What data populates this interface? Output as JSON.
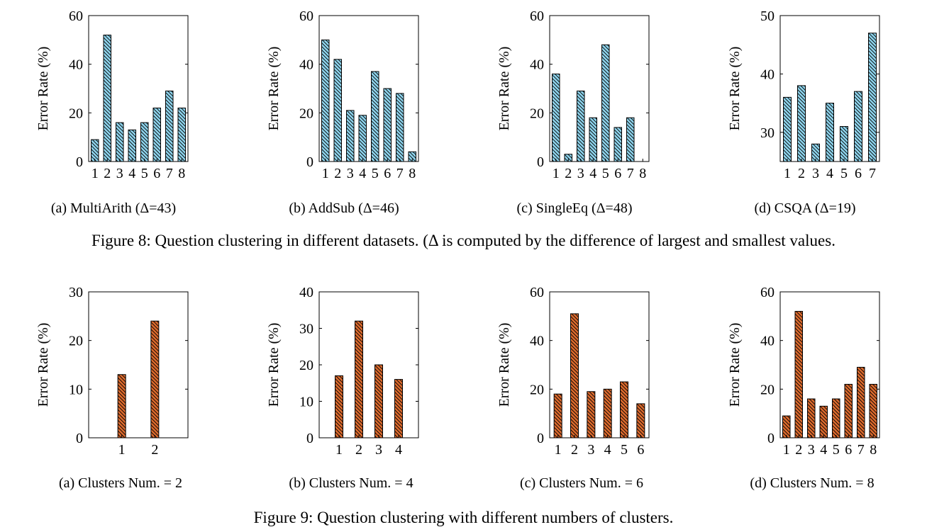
{
  "figure8": {
    "caption": "Figure 8: Question clustering in different datasets. (Δ is computed by the difference of largest and smallest values.",
    "bar_color": "#8dd3ec",
    "charts": [
      {
        "caption": "(a) MultiArith (Δ=43)"
      },
      {
        "caption": "(b) AddSub (Δ=46)"
      },
      {
        "caption": "(c) SingleEq (Δ=48)"
      },
      {
        "caption": "(d) CSQA (Δ=19)"
      }
    ]
  },
  "figure9": {
    "caption": "Figure 9: Question clustering with different numbers of clusters.",
    "bar_color": "#dc6a2d",
    "charts": [
      {
        "caption": "(a) Clusters Num. = 2"
      },
      {
        "caption": "(b) Clusters Num. = 4"
      },
      {
        "caption": "(c) Clusters Num. = 6"
      },
      {
        "caption": "(d) Clusters Num. = 8"
      }
    ]
  },
  "chart_data": [
    {
      "type": "bar",
      "ylabel": "Error Rate (%)",
      "categories": [
        "1",
        "2",
        "3",
        "4",
        "5",
        "6",
        "7",
        "8"
      ],
      "values": [
        9,
        52,
        16,
        13,
        16,
        22,
        29,
        22
      ],
      "ylim": [
        0,
        60
      ],
      "yticks": [
        0,
        20,
        40,
        60
      ],
      "hatch": "diagonal"
    },
    {
      "type": "bar",
      "ylabel": "Error Rate (%)",
      "categories": [
        "1",
        "2",
        "3",
        "4",
        "5",
        "6",
        "7",
        "8"
      ],
      "values": [
        50,
        42,
        21,
        19,
        37,
        30,
        28,
        4
      ],
      "ylim": [
        0,
        60
      ],
      "yticks": [
        0,
        20,
        40,
        60
      ],
      "hatch": "diagonal"
    },
    {
      "type": "bar",
      "ylabel": "Error Rate (%)",
      "categories": [
        "1",
        "2",
        "3",
        "4",
        "5",
        "6",
        "7",
        "8"
      ],
      "values": [
        36,
        3,
        29,
        18,
        48,
        14,
        18,
        0
      ],
      "ylim": [
        0,
        60
      ],
      "yticks": [
        0,
        20,
        40,
        60
      ],
      "hatch": "diagonal"
    },
    {
      "type": "bar",
      "ylabel": "Error Rate (%)",
      "categories": [
        "1",
        "2",
        "3",
        "4",
        "5",
        "6",
        "7"
      ],
      "values": [
        36,
        38,
        28,
        35,
        31,
        37,
        47
      ],
      "ylim": [
        25,
        50
      ],
      "yticks": [
        30,
        40,
        50
      ],
      "hatch": "diagonal"
    },
    {
      "type": "bar",
      "ylabel": "Error Rate (%)",
      "categories": [
        "1",
        "2"
      ],
      "values": [
        13,
        24
      ],
      "ylim": [
        0,
        30
      ],
      "yticks": [
        0,
        10,
        20,
        30
      ],
      "hatch": "diagonal"
    },
    {
      "type": "bar",
      "ylabel": "Error Rate (%)",
      "categories": [
        "1",
        "2",
        "3",
        "4"
      ],
      "values": [
        17,
        32,
        20,
        16
      ],
      "ylim": [
        0,
        40
      ],
      "yticks": [
        0,
        10,
        20,
        30,
        40
      ],
      "hatch": "diagonal"
    },
    {
      "type": "bar",
      "ylabel": "Error Rate (%)",
      "categories": [
        "1",
        "2",
        "3",
        "4",
        "5",
        "6"
      ],
      "values": [
        18,
        51,
        19,
        20,
        23,
        14
      ],
      "ylim": [
        0,
        60
      ],
      "yticks": [
        0,
        20,
        40,
        60
      ],
      "hatch": "diagonal"
    },
    {
      "type": "bar",
      "ylabel": "Error Rate (%)",
      "categories": [
        "1",
        "2",
        "3",
        "4",
        "5",
        "6",
        "7",
        "8"
      ],
      "values": [
        9,
        52,
        16,
        13,
        16,
        22,
        29,
        22
      ],
      "ylim": [
        0,
        60
      ],
      "yticks": [
        0,
        20,
        40,
        60
      ],
      "hatch": "diagonal"
    }
  ]
}
